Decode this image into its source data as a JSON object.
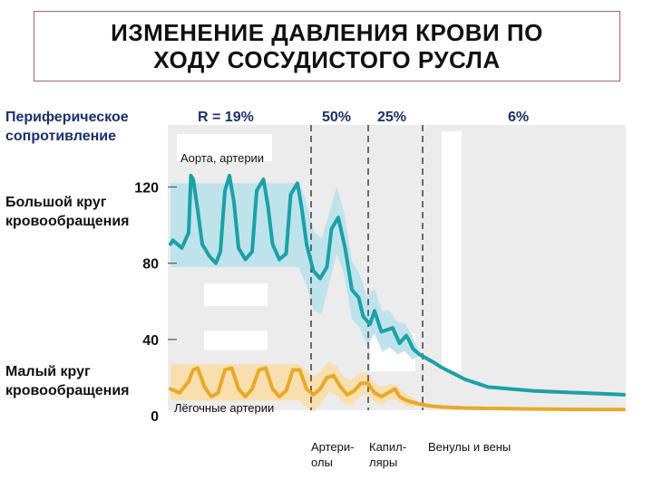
{
  "title_lines": [
    "ИЗМЕНЕНИЕ ДАВЛЕНИЯ КРОВИ ПО",
    "ХОДУ СОСУДИСТОГО РУСЛА"
  ],
  "resistance": {
    "label_lines": [
      "Периферическое",
      "сопротивление"
    ],
    "values": [
      "R = 19%",
      "50%",
      "25%",
      "6%"
    ]
  },
  "circulation": {
    "systemic_lines": [
      "Большой круг",
      "кровообращения"
    ],
    "pulmonary_lines": [
      "Малый круг",
      "кровообращения"
    ]
  },
  "annotations": {
    "aorta": "Аорта, артерии",
    "pulmonary_arteries": "Лёгочные артерии"
  },
  "segments": {
    "arterioles_lines": [
      "Артери-",
      "олы"
    ],
    "capillaries_lines": [
      "Капил-",
      "ляры"
    ],
    "veins": "Венулы и вены"
  },
  "colors": {
    "systemic_line": "#1ba0a8",
    "systemic_band": "#bfe3ea",
    "pulmonary_line": "#e8a92a",
    "pulmonary_band": "#f9dfae",
    "chart_bg": "#ececec",
    "axis_text": "#111111",
    "label_text": "#1c2f6e"
  },
  "chart_data": {
    "type": "line",
    "y_ticks": [
      0,
      40,
      80,
      120
    ],
    "ylim": [
      0,
      140
    ],
    "grid": false,
    "series": [
      {
        "kind": "systemic",
        "pulse_peaks": 5,
        "systolic": 120,
        "diastolic": 80,
        "points": [
          [
            0,
            90
          ],
          [
            0.1,
            92
          ],
          [
            0.5,
            88
          ],
          [
            0.8,
            96
          ],
          [
            0.9,
            126
          ],
          [
            1,
            124
          ],
          [
            1.2,
            108
          ],
          [
            1.4,
            90
          ],
          [
            1.7,
            84
          ],
          [
            2,
            80
          ],
          [
            2.2,
            86
          ],
          [
            2.4,
            118
          ],
          [
            2.6,
            126
          ],
          [
            2.8,
            112
          ],
          [
            3,
            88
          ],
          [
            3.3,
            82
          ],
          [
            3.6,
            86
          ],
          [
            3.8,
            118
          ],
          [
            4.1,
            124
          ],
          [
            4.3,
            110
          ],
          [
            4.5,
            90
          ],
          [
            4.8,
            82
          ],
          [
            5.1,
            85
          ],
          [
            5.3,
            116
          ],
          [
            5.6,
            122
          ],
          [
            5.8,
            108
          ],
          [
            6,
            90
          ],
          [
            6.3,
            76
          ],
          [
            6.6,
            72
          ],
          [
            6.9,
            78
          ],
          [
            7.1,
            98
          ],
          [
            7.4,
            104
          ],
          [
            7.7,
            88
          ],
          [
            8,
            66
          ],
          [
            8.3,
            62
          ],
          [
            8.5,
            52
          ],
          [
            8.8,
            48
          ],
          [
            9,
            55
          ],
          [
            9.3,
            44
          ],
          [
            9.8,
            46
          ],
          [
            10.1,
            38
          ],
          [
            10.4,
            42
          ],
          [
            10.5,
            40
          ],
          [
            10.7,
            35
          ],
          [
            11,
            32
          ],
          [
            11.3,
            30
          ],
          [
            11.6,
            28
          ],
          [
            12,
            25
          ],
          [
            12.5,
            22
          ],
          [
            13,
            19
          ],
          [
            13.5,
            17
          ],
          [
            14,
            15
          ],
          [
            15,
            14
          ],
          [
            16,
            13
          ],
          [
            17,
            12.5
          ],
          [
            18,
            12
          ],
          [
            19,
            11.5
          ],
          [
            20,
            11
          ]
        ]
      },
      {
        "kind": "pulmonary",
        "pulse_peaks": 6,
        "systolic": 25,
        "diastolic": 10,
        "points": [
          [
            0,
            14
          ],
          [
            0.4,
            12
          ],
          [
            0.8,
            18
          ],
          [
            1,
            24
          ],
          [
            1.2,
            25
          ],
          [
            1.5,
            15
          ],
          [
            1.8,
            10
          ],
          [
            2.1,
            12
          ],
          [
            2.4,
            24
          ],
          [
            2.7,
            25
          ],
          [
            3,
            14
          ],
          [
            3.3,
            10
          ],
          [
            3.6,
            14
          ],
          [
            3.9,
            24
          ],
          [
            4.2,
            25
          ],
          [
            4.5,
            14
          ],
          [
            4.8,
            10
          ],
          [
            5.1,
            13
          ],
          [
            5.4,
            24
          ],
          [
            5.7,
            24
          ],
          [
            6,
            14
          ],
          [
            6.3,
            11
          ],
          [
            6.6,
            14
          ],
          [
            6.9,
            20
          ],
          [
            7.2,
            21
          ],
          [
            7.5,
            15
          ],
          [
            7.8,
            11
          ],
          [
            8.1,
            13
          ],
          [
            8.4,
            17
          ],
          [
            8.7,
            17
          ],
          [
            9,
            12
          ],
          [
            9.3,
            10
          ],
          [
            9.6,
            12
          ],
          [
            9.9,
            14
          ],
          [
            10.1,
            10
          ],
          [
            10.4,
            8
          ],
          [
            10.7,
            7
          ],
          [
            11,
            6
          ],
          [
            11.5,
            5
          ],
          [
            12,
            4.5
          ],
          [
            13,
            4
          ],
          [
            14,
            3.8
          ],
          [
            16,
            3.5
          ],
          [
            18,
            3.3
          ],
          [
            20,
            3.2
          ]
        ]
      }
    ]
  }
}
